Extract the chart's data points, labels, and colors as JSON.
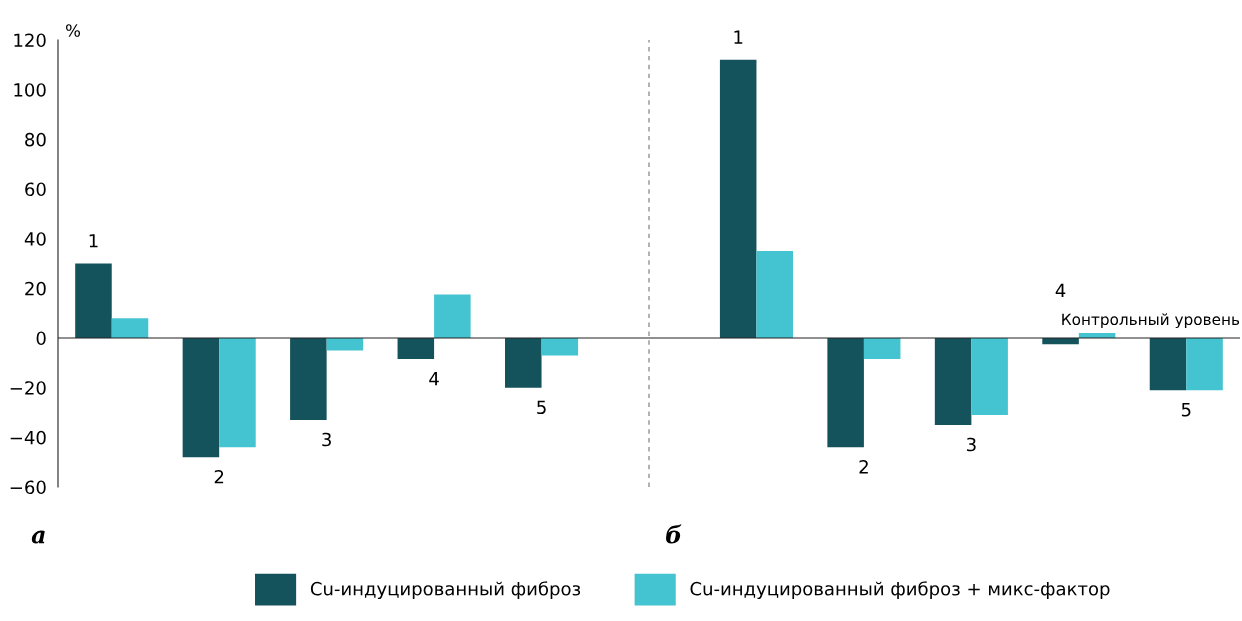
{
  "chart_data": {
    "type": "bar",
    "ylabel": "%",
    "categories": [
      null,
      null,
      null,
      null,
      null,
      null,
      null,
      null,
      null,
      null,
      null
    ],
    "series": [
      {
        "name": "Cu-индуцированный фиброз",
        "color": "#14525c",
        "values": [
          30,
          -48,
          -33,
          -8.5,
          -20,
          null,
          112,
          -44,
          -35,
          -2.5,
          -21
        ]
      },
      {
        "name": "Cu-индуцированный фиброз + микс-фактор",
        "color": "#44c3d0",
        "values": [
          8,
          -44,
          -5,
          17.5,
          -7,
          null,
          35,
          -8.5,
          -31,
          2,
          -21
        ]
      }
    ],
    "ylim": [
      -60,
      120
    ],
    "yticks": [
      {
        "value": -60,
        "label": "−60"
      },
      {
        "value": -40,
        "label": "−40"
      },
      {
        "value": -20,
        "label": "−20"
      },
      0,
      20,
      40,
      60,
      80,
      100,
      120
    ],
    "ref_lines": [
      {
        "axis": "y",
        "value": 0,
        "label": "Контрольный уровень"
      }
    ],
    "annotations": [
      "1",
      "2",
      "3",
      "4",
      "5",
      "1",
      "2",
      "3",
      "4",
      "5",
      "а",
      "б"
    ],
    "legend": "bottom"
  }
}
